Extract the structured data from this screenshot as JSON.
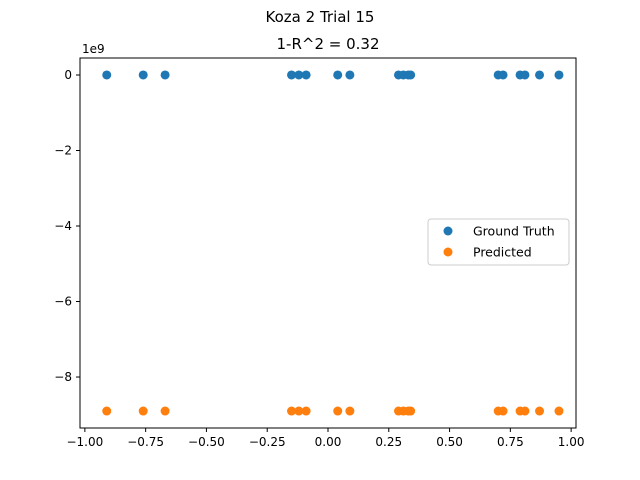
{
  "chart_data": {
    "type": "scatter",
    "suptitle": "Koza 2 Trial 15",
    "title": "1-R^2 = 0.32",
    "xlabel": "",
    "ylabel": "",
    "y_offset_label": "1e9",
    "xlim": [
      -1.02,
      1.02
    ],
    "ylim": [
      -9.35,
      0.45
    ],
    "xticks": [
      -1.0,
      -0.75,
      -0.5,
      -0.25,
      0.0,
      0.25,
      0.5,
      0.75,
      1.0
    ],
    "xtick_labels": [
      "−1.00",
      "−0.75",
      "−0.50",
      "−0.25",
      "0.00",
      "0.25",
      "0.50",
      "0.75",
      "1.00"
    ],
    "yticks": [
      0,
      -2,
      -4,
      -6,
      -8
    ],
    "ytick_labels": [
      "0",
      "−2",
      "−4",
      "−6",
      "−8"
    ],
    "grid": false,
    "legend_position": "center-right",
    "series": [
      {
        "name": "Ground Truth",
        "color": "#1f77b4",
        "x": [
          -0.91,
          -0.76,
          -0.67,
          -0.15,
          -0.12,
          -0.09,
          0.04,
          0.09,
          0.29,
          0.31,
          0.33,
          0.34,
          0.7,
          0.72,
          0.79,
          0.81,
          0.87,
          0.95
        ],
        "y": [
          0,
          0,
          0,
          0,
          0,
          0,
          0,
          0,
          0,
          0,
          0,
          0,
          0,
          0,
          0,
          0,
          0,
          0
        ]
      },
      {
        "name": "Predicted",
        "color": "#ff7f0e",
        "x": [
          -0.91,
          -0.76,
          -0.67,
          -0.15,
          -0.12,
          -0.09,
          0.04,
          0.09,
          0.29,
          0.31,
          0.33,
          0.34,
          0.7,
          0.72,
          0.79,
          0.81,
          0.87,
          0.95
        ],
        "y": [
          -8.9,
          -8.9,
          -8.9,
          -8.9,
          -8.9,
          -8.9,
          -8.9,
          -8.9,
          -8.9,
          -8.9,
          -8.9,
          -8.9,
          -8.9,
          -8.9,
          -8.9,
          -8.9,
          -8.9,
          -8.9
        ]
      }
    ]
  }
}
